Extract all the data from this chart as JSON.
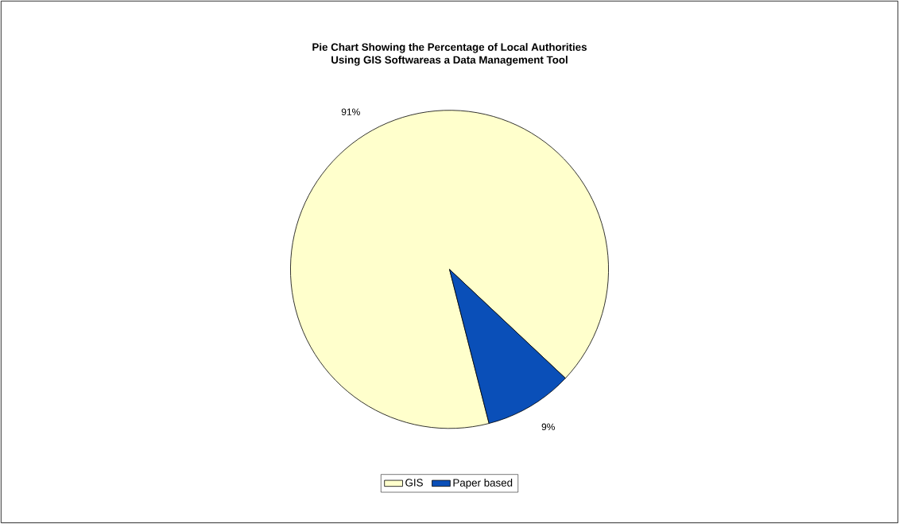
{
  "chart_data": {
    "type": "pie",
    "title": "Pie Chart Showing the Percentage of Local Authorities\nUsing GIS Softwareas a Data Management Tool",
    "categories": [
      "GIS",
      "Paper based"
    ],
    "values": [
      91,
      9
    ],
    "colors": [
      "#ffffcc",
      "#0a4fb8"
    ],
    "value_labels": [
      "91%",
      "9%"
    ],
    "legend": "bottom"
  }
}
